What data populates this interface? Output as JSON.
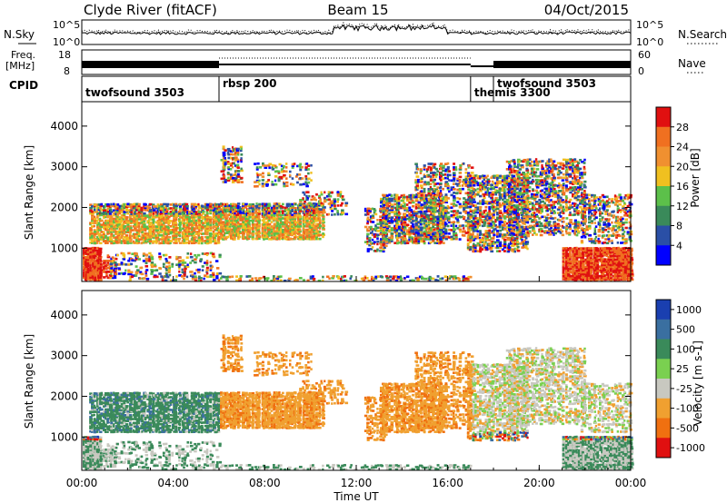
{
  "header": {
    "station": "Clyde River (fitACF)",
    "beam": "Beam 15",
    "date": "04/Oct/2015"
  },
  "noise_panel": {
    "left_label": "N.Sky",
    "right_label": "N.Search",
    "left_ticks": [
      "10^5",
      "10^0"
    ],
    "right_ticks": [
      "10^5",
      "10^0"
    ]
  },
  "freq_panel": {
    "left_label_1": "Freq.",
    "left_label_2": "[MHz]",
    "right_label": "Nave",
    "left_ticks": [
      "18",
      "8"
    ],
    "right_ticks": [
      "60",
      "0"
    ]
  },
  "cpid": {
    "label": "CPID",
    "programs": [
      {
        "name": "twofsound 3503",
        "start_hour": 0,
        "end_hour": 6
      },
      {
        "name": "rbsp 200",
        "start_hour": 6,
        "end_hour": 17
      },
      {
        "name": "themis 3300",
        "start_hour": 17,
        "end_hour": 18
      },
      {
        "name": "twofsound 3503",
        "start_hour": 18,
        "end_hour": 24
      }
    ]
  },
  "chart_data": [
    {
      "type": "heatmap",
      "quantity": "Power",
      "ylabel": "Slant Range [km]",
      "ylim": [
        180,
        4600
      ],
      "yticks": [
        "1000",
        "2000",
        "3000",
        "4000"
      ],
      "colorbar_label": "Power [dB]",
      "colorbar_ticks": [
        "4",
        "8",
        "12",
        "16",
        "20",
        "24",
        "28"
      ],
      "colorbar_range": [
        0,
        32
      ],
      "colors": [
        "#0000ff",
        "#2a4fa6",
        "#3a8a5a",
        "#5cc04a",
        "#f0c020",
        "#f09030",
        "#f07020",
        "#e01010"
      ]
    },
    {
      "type": "heatmap",
      "quantity": "Velocity",
      "ylabel": "Slant Range [km]",
      "ylim": [
        180,
        4600
      ],
      "yticks": [
        "1000",
        "2000",
        "3000",
        "4000"
      ],
      "colorbar_label": "Velocity [m s-1]",
      "colorbar_ticks": [
        "1000",
        "500",
        "100",
        "25",
        "-25",
        "-100",
        "-500",
        "-1000"
      ],
      "colors": [
        "#1a3fb0",
        "#3a6fa0",
        "#3a8a5a",
        "#7ad050",
        "#c8c8c0",
        "#f0a030",
        "#f07010",
        "#e01010"
      ]
    }
  ],
  "xaxis": {
    "label": "Time UT",
    "ticks": [
      "00:00",
      "04:00",
      "08:00",
      "12:00",
      "16:00",
      "20:00",
      "00:00"
    ]
  }
}
